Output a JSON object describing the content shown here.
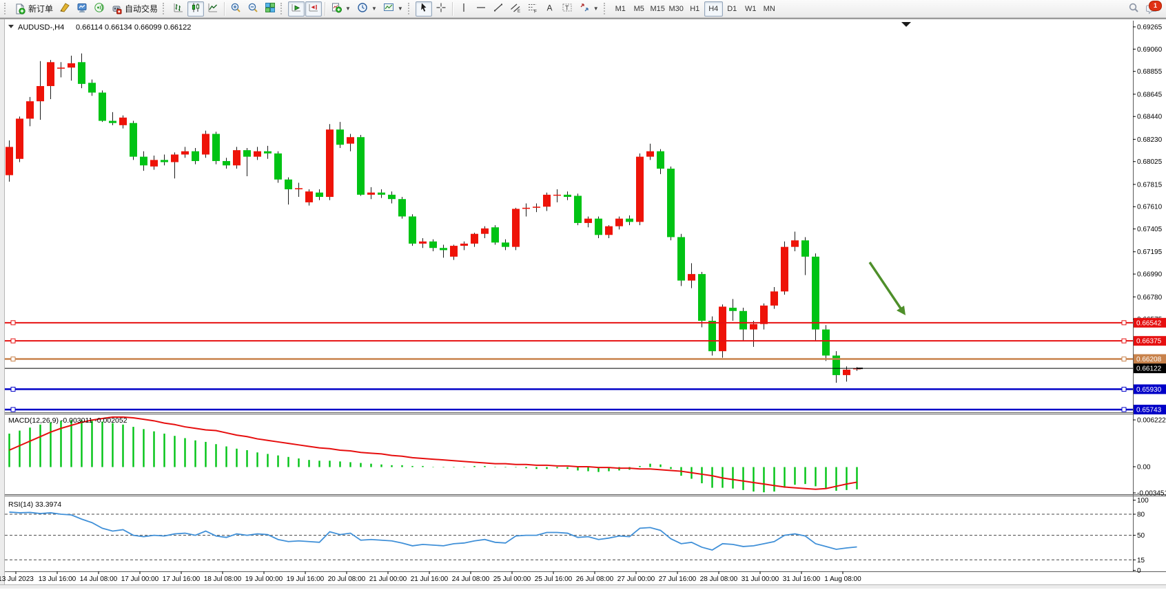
{
  "toolbar": {
    "new_order_label": "新订单",
    "auto_trading_label": "自动交易",
    "timeframes": [
      "M1",
      "M5",
      "M15",
      "M30",
      "H1",
      "H4",
      "D1",
      "W1",
      "MN"
    ],
    "active_timeframe": "H4",
    "notification_count": "1"
  },
  "chart": {
    "symbol_title": "AUDUSD-,H4",
    "ohlc_text": "0.66114 0.66134 0.66099 0.66122",
    "price_axis_ticks": [
      "0.69265",
      "0.69060",
      "0.68855",
      "0.68645",
      "0.68440",
      "0.68230",
      "0.68025",
      "0.67815",
      "0.67610",
      "0.67405",
      "0.67195",
      "0.66990",
      "0.66780",
      "0.66575"
    ],
    "time_axis_labels": [
      "13 Jul 2023",
      "13 Jul 16:00",
      "14 Jul 08:00",
      "17 Jul 00:00",
      "17 Jul 16:00",
      "18 Jul 08:00",
      "19 Jul 00:00",
      "19 Jul 16:00",
      "20 Jul 08:00",
      "21 Jul 00:00",
      "21 Jul 16:00",
      "24 Jul 08:00",
      "25 Jul 00:00",
      "25 Jul 16:00",
      "26 Jul 08:00",
      "27 Jul 00:00",
      "27 Jul 16:00",
      "28 Jul 08:00",
      "31 Jul 00:00",
      "31 Jul 16:00",
      "1 Aug 08:00"
    ],
    "price_lines": [
      {
        "label": "0.66542",
        "price": 0.66542,
        "color": "#e61010",
        "width": 2,
        "handles": true
      },
      {
        "label": "0.66375",
        "price": 0.66375,
        "color": "#e61010",
        "width": 2,
        "handles": true
      },
      {
        "label": "0.66208",
        "price": 0.66208,
        "color": "#c8824b",
        "width": 2.5,
        "handles": true
      },
      {
        "label": "0.66122",
        "price": 0.66122,
        "color": "#000000",
        "width": 1,
        "handles": false
      },
      {
        "label": "0.65930",
        "price": 0.6593,
        "color": "#0000c8",
        "width": 2.5,
        "handles": true
      },
      {
        "label": "0.65743",
        "price": 0.65743,
        "color": "#0000c8",
        "width": 2.5,
        "handles": true
      }
    ],
    "candles": [
      [
        0.679,
        0.6822,
        0.6784,
        0.6816
      ],
      [
        0.6805,
        0.6844,
        0.6802,
        0.6842
      ],
      [
        0.6842,
        0.6862,
        0.6835,
        0.6858
      ],
      [
        0.6858,
        0.6895,
        0.6841,
        0.6872
      ],
      [
        0.6872,
        0.6896,
        0.686,
        0.6894
      ],
      [
        0.6888,
        0.6894,
        0.688,
        0.6889
      ],
      [
        0.6889,
        0.69,
        0.6877,
        0.6893
      ],
      [
        0.6894,
        0.6902,
        0.687,
        0.6874
      ],
      [
        0.6875,
        0.6878,
        0.6863,
        0.6866
      ],
      [
        0.6866,
        0.6868,
        0.6839,
        0.684
      ],
      [
        0.684,
        0.6848,
        0.6836,
        0.6838
      ],
      [
        0.6836,
        0.6845,
        0.6833,
        0.6843
      ],
      [
        0.6838,
        0.684,
        0.6804,
        0.6807
      ],
      [
        0.6807,
        0.6812,
        0.6794,
        0.6799
      ],
      [
        0.6798,
        0.6808,
        0.6795,
        0.6804
      ],
      [
        0.6804,
        0.6809,
        0.6799,
        0.6802
      ],
      [
        0.6802,
        0.6811,
        0.6787,
        0.6809
      ],
      [
        0.6809,
        0.6816,
        0.6806,
        0.6812
      ],
      [
        0.6812,
        0.6815,
        0.68,
        0.6803
      ],
      [
        0.6809,
        0.6831,
        0.6806,
        0.6828
      ],
      [
        0.6828,
        0.683,
        0.68,
        0.6803
      ],
      [
        0.6803,
        0.6806,
        0.6796,
        0.6799
      ],
      [
        0.6799,
        0.6816,
        0.6796,
        0.6813
      ],
      [
        0.6813,
        0.6815,
        0.6789,
        0.6807
      ],
      [
        0.6807,
        0.6816,
        0.6804,
        0.6812
      ],
      [
        0.6812,
        0.6817,
        0.6805,
        0.681
      ],
      [
        0.681,
        0.6812,
        0.6783,
        0.6786
      ],
      [
        0.6786,
        0.6788,
        0.6763,
        0.6777
      ],
      [
        0.6777,
        0.6783,
        0.677,
        0.6778
      ],
      [
        0.6765,
        0.6777,
        0.6762,
        0.6775
      ],
      [
        0.6774,
        0.6777,
        0.6767,
        0.677
      ],
      [
        0.677,
        0.6837,
        0.6767,
        0.6832
      ],
      [
        0.6832,
        0.6839,
        0.6815,
        0.6818
      ],
      [
        0.6819,
        0.6828,
        0.6812,
        0.6825
      ],
      [
        0.6825,
        0.6827,
        0.6771,
        0.6772
      ],
      [
        0.6772,
        0.6779,
        0.6768,
        0.6774
      ],
      [
        0.6774,
        0.6777,
        0.6769,
        0.6772
      ],
      [
        0.6772,
        0.6775,
        0.6764,
        0.6768
      ],
      [
        0.6768,
        0.677,
        0.675,
        0.6752
      ],
      [
        0.6752,
        0.6754,
        0.6725,
        0.6727
      ],
      [
        0.6727,
        0.6732,
        0.6723,
        0.6729
      ],
      [
        0.6729,
        0.6731,
        0.672,
        0.6723
      ],
      [
        0.6723,
        0.6726,
        0.6714,
        0.6721
      ],
      [
        0.6715,
        0.6726,
        0.6712,
        0.6725
      ],
      [
        0.6725,
        0.6729,
        0.6721,
        0.6727
      ],
      [
        0.6727,
        0.6737,
        0.6724,
        0.6736
      ],
      [
        0.6736,
        0.6743,
        0.6732,
        0.6741
      ],
      [
        0.6742,
        0.6744,
        0.6726,
        0.6728
      ],
      [
        0.6728,
        0.6731,
        0.6721,
        0.6724
      ],
      [
        0.6724,
        0.676,
        0.6721,
        0.6759
      ],
      [
        0.6759,
        0.6764,
        0.6752,
        0.676
      ],
      [
        0.676,
        0.6764,
        0.6756,
        0.6761
      ],
      [
        0.6761,
        0.6774,
        0.6757,
        0.6772
      ],
      [
        0.6772,
        0.6777,
        0.6765,
        0.6772
      ],
      [
        0.6772,
        0.6775,
        0.6767,
        0.677
      ],
      [
        0.6771,
        0.6773,
        0.6744,
        0.6746
      ],
      [
        0.6746,
        0.6752,
        0.6742,
        0.675
      ],
      [
        0.675,
        0.6752,
        0.6732,
        0.6735
      ],
      [
        0.6735,
        0.6744,
        0.6732,
        0.6743
      ],
      [
        0.6743,
        0.6752,
        0.674,
        0.675
      ],
      [
        0.675,
        0.6753,
        0.6744,
        0.6747
      ],
      [
        0.6747,
        0.681,
        0.6744,
        0.6807
      ],
      [
        0.6807,
        0.6819,
        0.6804,
        0.6812
      ],
      [
        0.6812,
        0.6814,
        0.6791,
        0.6796
      ],
      [
        0.6796,
        0.6798,
        0.673,
        0.6733
      ],
      [
        0.6733,
        0.6736,
        0.6688,
        0.6693
      ],
      [
        0.6693,
        0.6709,
        0.6686,
        0.6699
      ],
      [
        0.6699,
        0.6701,
        0.665,
        0.6656
      ],
      [
        0.6656,
        0.666,
        0.6624,
        0.6628
      ],
      [
        0.6628,
        0.6671,
        0.6622,
        0.6669
      ],
      [
        0.6668,
        0.6676,
        0.6656,
        0.6665
      ],
      [
        0.6665,
        0.6668,
        0.6637,
        0.6648
      ],
      [
        0.6648,
        0.6656,
        0.6632,
        0.6653
      ],
      [
        0.6653,
        0.6672,
        0.6648,
        0.667
      ],
      [
        0.667,
        0.6687,
        0.6667,
        0.6683
      ],
      [
        0.6683,
        0.6729,
        0.668,
        0.6724
      ],
      [
        0.6724,
        0.6738,
        0.672,
        0.673
      ],
      [
        0.673,
        0.6733,
        0.6698,
        0.6715
      ],
      [
        0.6715,
        0.6718,
        0.6637,
        0.6648
      ],
      [
        0.6648,
        0.6652,
        0.6619,
        0.6624
      ],
      [
        0.6624,
        0.6628,
        0.6599,
        0.6606
      ],
      [
        0.6606,
        0.6614,
        0.66,
        0.6611
      ],
      [
        0.66114,
        0.66134,
        0.66099,
        0.66122
      ]
    ]
  },
  "macd": {
    "label": "MACD(12,26,9) -0.003011 -0.002052",
    "axis_labels": [
      "0.006222",
      "0.00",
      "-0.003451"
    ],
    "histogram": [
      0.0044,
      0.0048,
      0.0052,
      0.0056,
      0.0059,
      0.0061,
      0.0062,
      0.0062,
      0.0061,
      0.006,
      0.0058,
      0.0056,
      0.0053,
      0.005,
      0.0047,
      0.0044,
      0.0041,
      0.0038,
      0.0035,
      0.0033,
      0.003,
      0.0027,
      0.0024,
      0.0022,
      0.0019,
      0.0017,
      0.0015,
      0.0013,
      0.0011,
      0.0009,
      0.0008,
      0.0008,
      0.0007,
      0.0006,
      0.0005,
      0.0004,
      0.0003,
      0.0002,
      0.0002,
      0.0001,
      0.0001,
      0.0,
      -0.0001,
      -0.0001,
      0.0,
      0.0001,
      0.0001,
      0.0,
      -0.0001,
      -0.0001,
      -0.0002,
      -0.0003,
      -0.0003,
      -0.0002,
      -0.0003,
      -0.0005,
      -0.0006,
      -0.0007,
      -0.0006,
      -0.0005,
      -0.0004,
      0.0001,
      0.0004,
      0.0003,
      -0.0003,
      -0.0012,
      -0.0016,
      -0.0022,
      -0.0028,
      -0.0028,
      -0.0029,
      -0.0031,
      -0.0033,
      -0.0034,
      -0.0033,
      -0.0028,
      -0.0024,
      -0.0023,
      -0.0026,
      -0.0029,
      -0.0032,
      -0.0031,
      -0.003011
    ],
    "signal": [
      0.0022,
      0.0028,
      0.0034,
      0.004,
      0.0046,
      0.0051,
      0.0055,
      0.0059,
      0.0062,
      0.0064,
      0.0066,
      0.0066,
      0.0065,
      0.0063,
      0.0061,
      0.0058,
      0.0056,
      0.0053,
      0.0051,
      0.0049,
      0.0048,
      0.0045,
      0.0042,
      0.004,
      0.0037,
      0.0035,
      0.0033,
      0.0031,
      0.0029,
      0.0027,
      0.0025,
      0.0024,
      0.0022,
      0.0021,
      0.0019,
      0.0018,
      0.0017,
      0.0015,
      0.0014,
      0.0012,
      0.0011,
      0.001,
      0.0009,
      0.0008,
      0.0007,
      0.0006,
      0.0005,
      0.0004,
      0.0004,
      0.0003,
      0.0003,
      0.0002,
      0.0002,
      0.0001,
      0.0001,
      0.0,
      0.0,
      -0.0001,
      -0.0001,
      -0.0002,
      -0.0002,
      -0.0003,
      -0.0003,
      -0.0004,
      -0.0005,
      -0.0006,
      -0.0008,
      -0.001,
      -0.0012,
      -0.0015,
      -0.0017,
      -0.0019,
      -0.0021,
      -0.0023,
      -0.0025,
      -0.0027,
      -0.0028,
      -0.0029,
      -0.003,
      -0.0029,
      -0.0026,
      -0.0023,
      -0.002052
    ]
  },
  "rsi": {
    "label": "RSI(14) 33.3974",
    "axis_labels": [
      "100",
      "80",
      "50",
      "15",
      "0"
    ],
    "levels": [
      80,
      50,
      15
    ],
    "values": [
      83,
      82,
      82.5,
      81,
      82,
      80,
      79,
      73,
      68,
      60,
      56,
      58,
      50,
      48,
      50,
      49,
      52,
      53,
      50,
      56,
      49,
      47,
      52,
      50,
      52,
      51,
      44,
      41,
      42,
      41,
      40,
      55,
      51,
      53,
      43,
      44,
      43,
      42,
      39,
      35,
      37,
      36,
      35,
      38,
      39,
      42,
      44,
      40,
      39,
      49,
      50,
      50,
      54,
      54,
      53,
      47,
      48,
      44,
      46,
      49,
      48,
      60,
      61,
      57,
      45,
      38,
      40,
      33,
      29,
      38,
      37,
      34,
      35,
      38,
      41,
      50,
      52,
      49,
      38,
      34,
      30,
      32,
      33.3974
    ]
  },
  "colors": {
    "bull": "#ee1308",
    "bear": "#00c314",
    "wick": "#1a1a1a",
    "macd_hist": "#00c314",
    "macd_signal": "#e60e0e",
    "rsi_line": "#4090d8",
    "arrow": "#4e8f2a"
  }
}
